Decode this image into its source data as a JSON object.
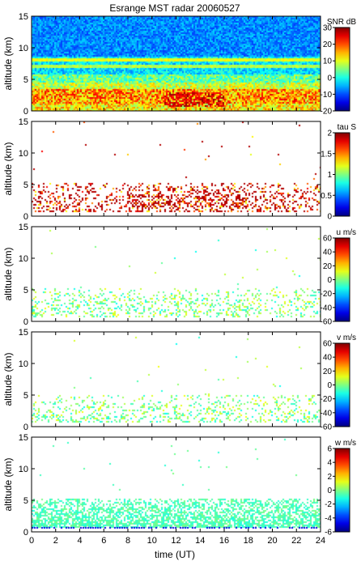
{
  "chart_data": {
    "title": "Esrange MST radar 20060527",
    "xlabel": "time (UT)",
    "xlim": [
      0,
      24
    ],
    "xticks": [
      0,
      2,
      4,
      6,
      8,
      10,
      12,
      14,
      16,
      18,
      20,
      22,
      24
    ],
    "panels": [
      {
        "type": "heatmap",
        "ylabel": "altitude (km)",
        "ylim": [
          0,
          15
        ],
        "yticks": [
          0,
          5,
          10,
          15
        ],
        "colorbar": {
          "label": "SNR dB",
          "range": [
            -20,
            30
          ],
          "ticks": [
            -20,
            -10,
            0,
            10,
            20,
            30
          ]
        }
      },
      {
        "type": "heatmap",
        "ylabel": "altitude (km)",
        "ylim": [
          0,
          15
        ],
        "yticks": [
          0,
          5,
          10,
          15
        ],
        "colorbar": {
          "label": "tau S",
          "range": [
            0,
            2
          ],
          "ticks": [
            "0",
            "0.5",
            "1",
            "1.5",
            "2"
          ]
        }
      },
      {
        "type": "heatmap",
        "ylabel": "altitude (km)",
        "ylim": [
          0,
          15
        ],
        "yticks": [
          0,
          5,
          10,
          15
        ],
        "colorbar": {
          "label": "u m/s",
          "range": [
            -60,
            60
          ],
          "ticks": [
            -60,
            -40,
            -20,
            0,
            20,
            40,
            60
          ]
        }
      },
      {
        "type": "heatmap",
        "ylabel": "altitude (km)",
        "ylim": [
          0,
          15
        ],
        "yticks": [
          0,
          5,
          10,
          15
        ],
        "colorbar": {
          "label": "v m/s",
          "range": [
            -60,
            60
          ],
          "ticks": [
            -60,
            -40,
            -20,
            0,
            20,
            40,
            60
          ]
        }
      },
      {
        "type": "heatmap",
        "ylabel": "altitude (km)",
        "ylim": [
          0,
          15
        ],
        "yticks": [
          0,
          5,
          10,
          15
        ],
        "colorbar": {
          "label": "w m/s",
          "range": [
            -6,
            6
          ],
          "ticks": [
            -6,
            -4,
            -2,
            0,
            2,
            4,
            6
          ]
        }
      }
    ]
  }
}
